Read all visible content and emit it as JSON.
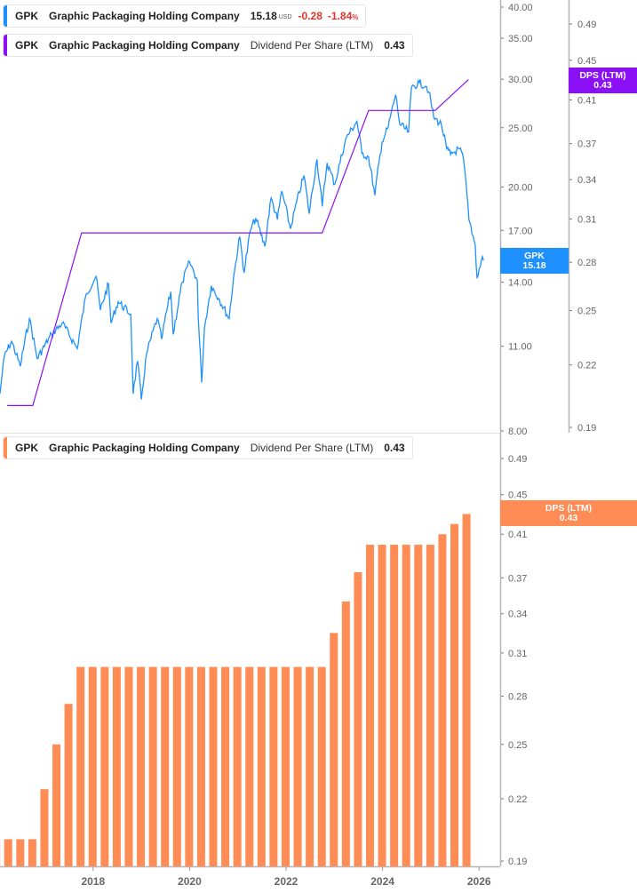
{
  "legend_price": {
    "symbol": "GPK",
    "company": "Graphic Packaging Holding Company",
    "price": "15.18",
    "currency": "USD",
    "change": "-0.28",
    "change_pct": "-1.84",
    "pct_sign": "%",
    "color": "#1e90ff"
  },
  "legend_dps_top": {
    "symbol": "GPK",
    "company": "Graphic Packaging Holding Company",
    "metric": "Dividend Per Share (LTM)",
    "value": "0.43",
    "color": "#8b10f5"
  },
  "legend_dps_bottom": {
    "symbol": "GPK",
    "company": "Graphic Packaging Holding Company",
    "metric": "Dividend Per Share (LTM)",
    "value": "0.43",
    "color": "#ff8c55"
  },
  "tags": {
    "price": {
      "label": "GPK",
      "value": "15.18"
    },
    "dps_top": {
      "label": "DPS (LTM)",
      "value": "0.43"
    },
    "dps_bottom": {
      "label": "DPS (LTM)",
      "value": "0.43"
    }
  },
  "chart_data": [
    {
      "type": "line",
      "scale": "log",
      "price_axis": {
        "ticks": [
          "40.00",
          "35.00",
          "30.00",
          "25.00",
          "20.00",
          "17.00",
          "14.00",
          "11.00",
          "8.00"
        ],
        "range": [
          8,
          40
        ]
      },
      "dps_axis": {
        "ticks": [
          "0.49",
          "0.45",
          "0.41",
          "0.37",
          "0.34",
          "0.31",
          "0.28",
          "0.25",
          "0.22",
          "0.19"
        ],
        "range": [
          0.19,
          0.49
        ]
      },
      "series": [
        {
          "name": "GPK",
          "color": "#1e90ff",
          "points": [
            [
              2016.07,
              9.2
            ],
            [
              2016.16,
              10.6
            ],
            [
              2016.31,
              11.2
            ],
            [
              2016.49,
              10.2
            ],
            [
              2016.68,
              12.2
            ],
            [
              2016.84,
              10.5
            ],
            [
              2017.14,
              11.5
            ],
            [
              2017.36,
              12.0
            ],
            [
              2017.67,
              10.9
            ],
            [
              2017.86,
              13.4
            ],
            [
              2018.06,
              14.3
            ],
            [
              2018.15,
              12.6
            ],
            [
              2018.32,
              13.9
            ],
            [
              2018.37,
              12.0
            ],
            [
              2018.52,
              13.0
            ],
            [
              2018.78,
              12.4
            ],
            [
              2018.83,
              9.2
            ],
            [
              2018.92,
              10.4
            ],
            [
              2019.0,
              9.0
            ],
            [
              2019.11,
              10.7
            ],
            [
              2019.33,
              12.2
            ],
            [
              2019.42,
              11.3
            ],
            [
              2019.61,
              13.5
            ],
            [
              2019.66,
              11.5
            ],
            [
              2019.85,
              14.0
            ],
            [
              2020.0,
              15.1
            ],
            [
              2020.16,
              14.1
            ],
            [
              2020.18,
              12.2
            ],
            [
              2020.25,
              9.6
            ],
            [
              2020.31,
              11.8
            ],
            [
              2020.45,
              13.8
            ],
            [
              2020.62,
              13.1
            ],
            [
              2020.82,
              12.2
            ],
            [
              2020.91,
              14.2
            ],
            [
              2021.04,
              16.6
            ],
            [
              2021.13,
              14.5
            ],
            [
              2021.26,
              17.0
            ],
            [
              2021.37,
              17.8
            ],
            [
              2021.56,
              16.0
            ],
            [
              2021.69,
              19.2
            ],
            [
              2021.82,
              17.7
            ],
            [
              2021.91,
              19.7
            ],
            [
              2022.09,
              17.1
            ],
            [
              2022.37,
              20.9
            ],
            [
              2022.48,
              18.1
            ],
            [
              2022.64,
              22.2
            ],
            [
              2022.75,
              18.6
            ],
            [
              2022.85,
              21.9
            ],
            [
              2023.01,
              20.2
            ],
            [
              2023.25,
              24.1
            ],
            [
              2023.47,
              25.6
            ],
            [
              2023.57,
              22.7
            ],
            [
              2023.71,
              22.4
            ],
            [
              2023.84,
              19.4
            ],
            [
              2023.99,
              23.7
            ],
            [
              2024.12,
              25.1
            ],
            [
              2024.27,
              28.3
            ],
            [
              2024.36,
              25.3
            ],
            [
              2024.54,
              24.6
            ],
            [
              2024.6,
              29.1
            ],
            [
              2024.76,
              29.6
            ],
            [
              2024.91,
              29.2
            ],
            [
              2024.96,
              28.6
            ],
            [
              2025.06,
              26.0
            ],
            [
              2025.22,
              25.3
            ],
            [
              2025.33,
              23.1
            ],
            [
              2025.41,
              22.6
            ],
            [
              2025.59,
              23.1
            ],
            [
              2025.68,
              22.2
            ],
            [
              2025.79,
              17.7
            ],
            [
              2025.92,
              16.1
            ],
            [
              2025.96,
              14.2
            ],
            [
              2026.07,
              15.4
            ],
            [
              2026.09,
              15.18
            ]
          ]
        },
        {
          "name": "DPS (LTM)",
          "color": "#8b10f5",
          "axis": "dps",
          "points": [
            [
              2016.22,
              0.2
            ],
            [
              2016.75,
              0.2
            ],
            [
              2017.76,
              0.3
            ],
            [
              2022.75,
              0.3
            ],
            [
              2023.71,
              0.4
            ],
            [
              2025.09,
              0.4
            ],
            [
              2025.78,
              0.43
            ]
          ]
        }
      ]
    },
    {
      "type": "bar",
      "scale": "log",
      "color": "#ff8c55",
      "y_axis": {
        "ticks": [
          "0.49",
          "0.45",
          "0.41",
          "0.37",
          "0.34",
          "0.31",
          "0.28",
          "0.25",
          "0.22",
          "0.19"
        ],
        "range": [
          0.19,
          0.49
        ]
      },
      "x_ticks": [
        "2018",
        "2020",
        "2022",
        "2024",
        "2026"
      ],
      "categories": [
        "2015-Q4",
        "2016-Q1",
        "2016-Q2",
        "2016-Q3",
        "2016-Q4",
        "2017-Q1",
        "2017-Q2",
        "2017-Q3",
        "2017-Q4",
        "2018-Q1",
        "2018-Q2",
        "2018-Q3",
        "2018-Q4",
        "2019-Q1",
        "2019-Q2",
        "2019-Q3",
        "2019-Q4",
        "2020-Q1",
        "2020-Q2",
        "2020-Q3",
        "2020-Q4",
        "2021-Q1",
        "2021-Q2",
        "2021-Q3",
        "2021-Q4",
        "2022-Q1",
        "2022-Q2",
        "2022-Q3",
        "2022-Q4",
        "2023-Q1",
        "2023-Q2",
        "2023-Q3",
        "2023-Q4",
        "2024-Q1",
        "2024-Q2",
        "2024-Q3",
        "2024-Q4",
        "2025-Q1",
        "2025-Q2",
        "2025-Q3"
      ],
      "values": [
        0.2,
        0.2,
        0.2,
        0.2,
        0.225,
        0.25,
        0.275,
        0.3,
        0.3,
        0.3,
        0.3,
        0.3,
        0.3,
        0.3,
        0.3,
        0.3,
        0.3,
        0.3,
        0.3,
        0.3,
        0.3,
        0.3,
        0.3,
        0.3,
        0.3,
        0.3,
        0.3,
        0.3,
        0.325,
        0.35,
        0.375,
        0.4,
        0.4,
        0.4,
        0.4,
        0.4,
        0.4,
        0.41,
        0.42,
        0.43
      ]
    }
  ]
}
